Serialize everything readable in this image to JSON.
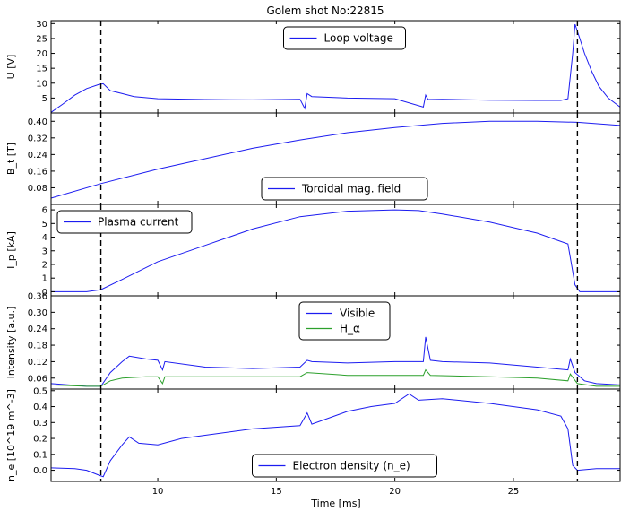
{
  "chart_data": {
    "type": "line",
    "title": "Golem shot No:22815",
    "xlabel": "Time [ms]",
    "xlim": [
      5.5,
      29.5
    ],
    "xticks": [
      10,
      15,
      20,
      25
    ],
    "vlines": [
      7.6,
      27.7
    ],
    "colors": {
      "blue": "#1c1cf0",
      "green": "#2ca02c"
    },
    "panels": [
      {
        "ylabel": "U [V]",
        "ylim": [
          0,
          31
        ],
        "yticks": [
          5,
          10,
          15,
          20,
          25,
          30
        ],
        "legend_loc": "top-center",
        "series": [
          {
            "name": "Loop voltage",
            "color": "blue",
            "x": [
              5.5,
              6.0,
              6.5,
              7.0,
              7.5,
              7.7,
              8.0,
              8.5,
              9.0,
              10.0,
              12.0,
              14.0,
              16.0,
              16.2,
              16.3,
              16.5,
              18.0,
              20.0,
              21.2,
              21.3,
              21.4,
              22.0,
              24.0,
              26.0,
              27.0,
              27.3,
              27.5,
              27.6,
              27.8,
              28.0,
              28.3,
              28.6,
              29.0,
              29.5
            ],
            "y": [
              0.2,
              3,
              6,
              8.2,
              9.5,
              9.8,
              7.5,
              6.5,
              5.5,
              4.8,
              4.5,
              4.4,
              4.6,
              1.5,
              6.5,
              5.5,
              5.0,
              4.8,
              2.0,
              6.0,
              4.5,
              4.6,
              4.3,
              4.2,
              4.2,
              4.8,
              20,
              29.8,
              25,
              20,
              14,
              9,
              5,
              2
            ]
          }
        ]
      },
      {
        "ylabel": "B_t [T]",
        "ylim": [
          0.0,
          0.44
        ],
        "yticks": [
          0.08,
          0.16,
          0.24,
          0.32,
          0.4
        ],
        "legend_loc": "bottom-center",
        "series": [
          {
            "name": "Toroidal mag. field",
            "color": "blue",
            "x": [
              5.5,
              7.6,
              10,
              12,
              14,
              16,
              18,
              20,
              22,
              24,
              26,
              27.7,
              29.5
            ],
            "y": [
              0.03,
              0.1,
              0.17,
              0.22,
              0.27,
              0.31,
              0.345,
              0.37,
              0.39,
              0.4,
              0.4,
              0.395,
              0.38
            ]
          }
        ]
      },
      {
        "ylabel": "I_p [kA]",
        "ylim": [
          -0.3,
          6.4
        ],
        "yticks": [
          0,
          1,
          2,
          3,
          4,
          5,
          6
        ],
        "legend_loc": "top-left",
        "series": [
          {
            "name": "Plasma current",
            "color": "blue",
            "x": [
              5.5,
              7.0,
              7.6,
              8.5,
              10,
              12,
              14,
              16,
              18,
              20,
              21,
              22,
              24,
              26,
              27.3,
              27.6,
              27.8,
              28.5,
              29.5
            ],
            "y": [
              0.0,
              0.0,
              0.15,
              0.9,
              2.2,
              3.4,
              4.6,
              5.5,
              5.9,
              6.0,
              5.95,
              5.7,
              5.1,
              4.3,
              3.5,
              0.5,
              0.0,
              0.0,
              0.0
            ]
          }
        ]
      },
      {
        "ylabel": "Intensity [a.u.]",
        "ylim": [
          0.02,
          0.36
        ],
        "yticks": [
          0.06,
          0.12,
          0.18,
          0.24,
          0.3,
          0.36
        ],
        "legend_loc": "top-center",
        "series": [
          {
            "name": "Visible",
            "color": "blue",
            "x": [
              5.5,
              7.0,
              7.6,
              8.0,
              8.5,
              8.8,
              9.5,
              10.0,
              10.2,
              10.3,
              12,
              14,
              16,
              16.3,
              16.5,
              18,
              20,
              21.2,
              21.3,
              21.5,
              22,
              24,
              26,
              27.3,
              27.4,
              27.6,
              28.0,
              28.5,
              29.5
            ],
            "y": [
              0.04,
              0.03,
              0.03,
              0.08,
              0.12,
              0.14,
              0.13,
              0.125,
              0.09,
              0.12,
              0.1,
              0.095,
              0.1,
              0.125,
              0.12,
              0.115,
              0.12,
              0.12,
              0.21,
              0.125,
              0.12,
              0.115,
              0.1,
              0.09,
              0.13,
              0.08,
              0.05,
              0.04,
              0.035
            ]
          },
          {
            "name": "H_α",
            "color": "green",
            "x": [
              5.5,
              7.0,
              7.6,
              8.0,
              8.5,
              9.5,
              10.0,
              10.2,
              10.3,
              12,
              14,
              16,
              16.3,
              18,
              20,
              21.2,
              21.3,
              21.5,
              24,
              26,
              27.3,
              27.4,
              27.7,
              28.5,
              29.5
            ],
            "y": [
              0.035,
              0.03,
              0.03,
              0.05,
              0.06,
              0.065,
              0.065,
              0.04,
              0.065,
              0.065,
              0.065,
              0.065,
              0.08,
              0.07,
              0.07,
              0.07,
              0.09,
              0.07,
              0.065,
              0.06,
              0.05,
              0.075,
              0.04,
              0.03,
              0.03
            ]
          }
        ]
      },
      {
        "ylabel": "n_e [10^19 m^-3]",
        "ylim": [
          -0.07,
          0.51
        ],
        "yticks": [
          0.0,
          0.1,
          0.2,
          0.3,
          0.4,
          0.5
        ],
        "legend_loc": "bottom-center",
        "series": [
          {
            "name": "Electron density (n_e)",
            "color": "blue",
            "x": [
              5.5,
              6.5,
              7.0,
              7.5,
              7.7,
              8.0,
              8.5,
              8.8,
              9.2,
              10.0,
              11,
              12,
              14,
              16.0,
              16.3,
              16.5,
              18,
              19,
              20,
              20.6,
              21,
              22,
              24,
              26,
              27.0,
              27.3,
              27.5,
              27.7,
              28.5,
              29.5
            ],
            "y": [
              0.015,
              0.01,
              0.0,
              -0.03,
              -0.04,
              0.06,
              0.16,
              0.21,
              0.17,
              0.16,
              0.2,
              0.22,
              0.26,
              0.28,
              0.36,
              0.29,
              0.37,
              0.4,
              0.42,
              0.48,
              0.44,
              0.45,
              0.42,
              0.38,
              0.34,
              0.26,
              0.03,
              0.0,
              0.01,
              0.01
            ]
          }
        ]
      }
    ]
  },
  "legend_labels": {
    "p0_s0": "Loop voltage",
    "p1_s0": "Toroidal mag. field",
    "p2_s0": "Plasma current",
    "p3_s0": "Visible",
    "p4_s0": "Electron density (n_e)"
  }
}
